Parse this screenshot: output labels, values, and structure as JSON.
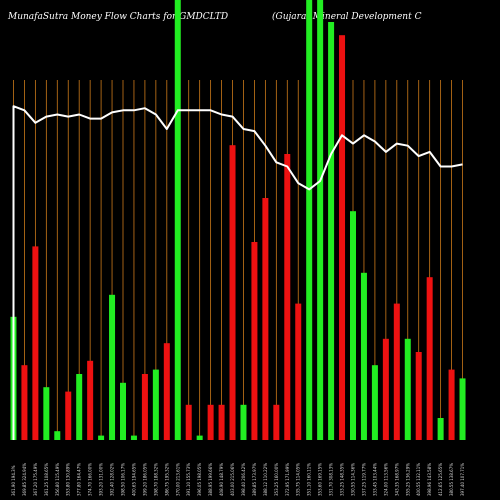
{
  "header": {
    "left_title": "MunafaSutra  Money Flow  Charts for GMDCLTD",
    "right_title": "(Gujarat Mineral Development C"
  },
  "colors": {
    "background": "#000000",
    "up": "#22ee22",
    "down": "#ee1111",
    "grid": "#cc7a1a",
    "line": "#ffffff"
  },
  "chart_data": {
    "type": "bar",
    "ylim": [
      0,
      100
    ],
    "line_ylim": [
      0,
      100
    ],
    "categories": [
      "361.90 194.3%",
      "369.85 324.94%",
      "367.20 175.49%",
      "361.25 108.65%",
      "356.80 115.49%",
      "353.80 130.89%",
      "377.80 164.47%",
      "374.70 166.00%",
      "393.20 131.00%",
      "392.40 128.02%",
      "398.50 106.17%",
      "400.65 194.65%",
      "399.20 186.05%",
      "398.70 188.32%",
      "386.75 195.32%",
      "370.00 213.61%",
      "391.10 155.73%",
      "396.05 198.05%",
      "388.95 199.66%",
      "408.90 148.79%",
      "403.00 215.06%",
      "398.40 206.42%",
      "389.85 173.97%",
      "388.12 110.22%",
      "353.25 160.00%",
      "372.95 171.99%",
      "335.75 114.05%",
      "351.10 160.11%",
      "353.60 169.15%",
      "331.70 308.13%",
      "333.25 148.35%",
      "330.55 114.36%",
      "337.25 119.77%",
      "333.45 103.44%",
      "324.00 113.56%",
      "343.35 168.97%",
      "355.25 136.29%",
      "400.55 132.11%",
      "398.96 143.58%",
      "412.65 125.65%",
      "380.55 138.67%",
      "397.40 107.71%"
    ],
    "values": [
      28,
      17,
      44,
      12,
      2,
      11,
      15,
      18,
      1,
      33,
      13,
      1,
      15,
      16,
      22,
      100,
      8,
      1,
      8,
      8,
      67,
      8,
      45,
      55,
      8,
      65,
      31,
      100,
      100,
      95,
      92,
      52,
      38,
      17,
      23,
      31,
      23,
      20,
      37,
      5,
      16,
      14
    ],
    "directions": [
      "up",
      "down",
      "down",
      "up",
      "up",
      "down",
      "up",
      "down",
      "up",
      "up",
      "up",
      "up",
      "down",
      "up",
      "down",
      "up",
      "down",
      "up",
      "down",
      "down",
      "down",
      "up",
      "down",
      "down",
      "down",
      "down",
      "down",
      "up",
      "up",
      "up",
      "down",
      "up",
      "up",
      "up",
      "down",
      "down",
      "up",
      "down",
      "down",
      "up",
      "down",
      "up"
    ],
    "line_values": [
      98,
      96,
      90,
      93,
      94,
      93,
      94,
      92,
      92,
      95,
      96,
      96,
      97,
      94,
      87,
      96,
      96,
      96,
      96,
      94,
      93,
      87,
      86,
      79,
      71,
      69,
      61,
      58,
      62,
      75,
      84,
      80,
      84,
      81,
      76,
      80,
      79,
      74,
      76,
      69,
      69,
      70
    ]
  }
}
